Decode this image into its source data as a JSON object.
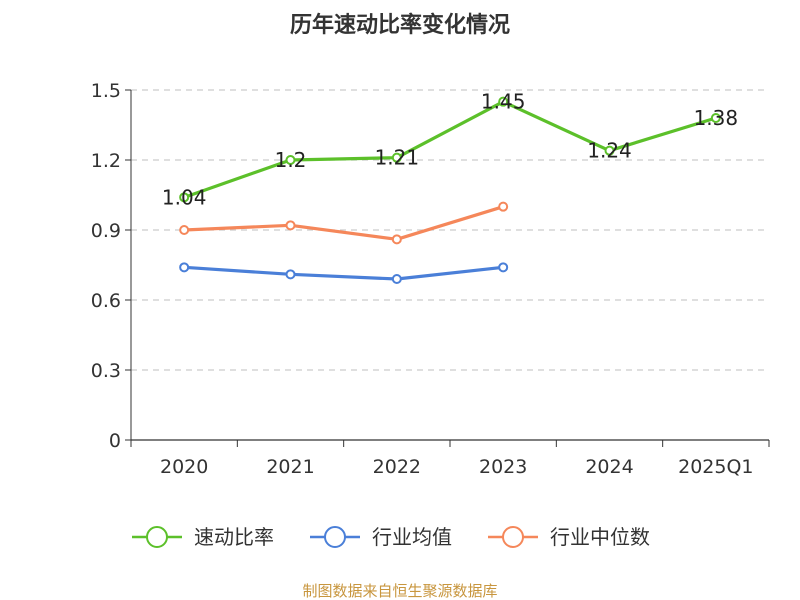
{
  "chart_data": {
    "type": "line",
    "title": "历年速动比率变化情况",
    "categories": [
      "2020",
      "2021",
      "2022",
      "2023",
      "2024",
      "2025Q1"
    ],
    "ylim": [
      0,
      1.5
    ],
    "yticks": [
      "0",
      "0.3",
      "0.6",
      "0.9",
      "1.2",
      "1.5"
    ],
    "grid": true,
    "legend_position": "bottom",
    "series": [
      {
        "name": "速动比率",
        "color": "#5cc02a",
        "values": [
          1.04,
          1.2,
          1.21,
          1.45,
          1.24,
          1.38
        ],
        "labels": [
          "1.04",
          "1.2",
          "1.21",
          "1.45",
          "1.24",
          "1.38"
        ],
        "show_labels": true
      },
      {
        "name": "行业均值",
        "color": "#4a7fd8",
        "values": [
          0.74,
          0.71,
          0.69,
          0.74,
          null,
          null
        ],
        "show_labels": false
      },
      {
        "name": "行业中位数",
        "color": "#f5875a",
        "values": [
          0.9,
          0.92,
          0.86,
          1.0,
          null,
          null
        ],
        "show_labels": false
      }
    ]
  },
  "source": "制图数据来自恒生聚源数据库"
}
